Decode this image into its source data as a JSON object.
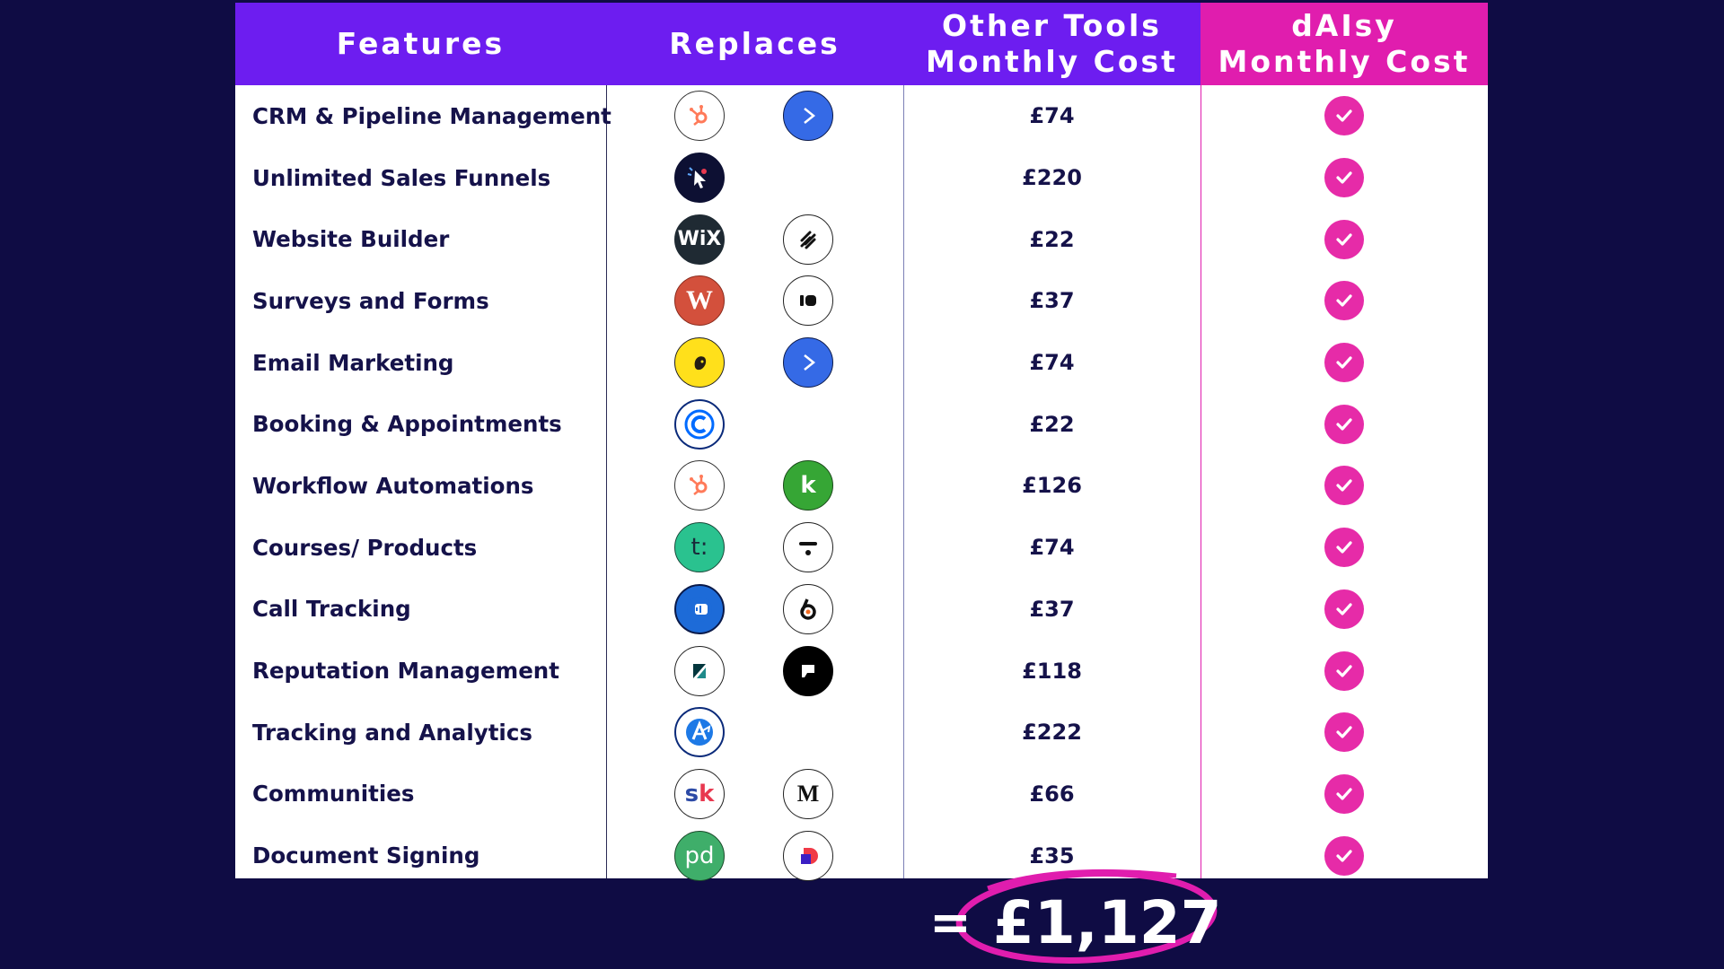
{
  "headers": {
    "features": "Features",
    "replaces": "Replaces",
    "other_tools": "Other Tools\nMonthly Cost",
    "daisy": "dAIsy\nMonthly Cost"
  },
  "colors": {
    "background": "#0f0c44",
    "header_purple": "#6d1df0",
    "header_pink": "#e01dae",
    "check_pink": "#e62ba8",
    "text_dark": "#15124a"
  },
  "rows": [
    {
      "feature": "CRM & Pipeline Management",
      "cost": "£74",
      "logos": [
        "hubspot-icon",
        "activecampaign-icon"
      ]
    },
    {
      "feature": "Unlimited Sales Funnels",
      "cost": "£220",
      "logos": [
        "clickfunnels-icon"
      ]
    },
    {
      "feature": "Website Builder",
      "cost": "£22",
      "logos": [
        "wix-icon",
        "squarespace-icon"
      ]
    },
    {
      "feature": "Surveys and Forms",
      "cost": "£37",
      "logos": [
        "wufoo-icon",
        "typeform-icon"
      ]
    },
    {
      "feature": "Email Marketing",
      "cost": "£74",
      "logos": [
        "mailchimp-icon",
        "activecampaign-icon"
      ]
    },
    {
      "feature": "Booking & Appointments",
      "cost": "£22",
      "logos": [
        "calendly-icon"
      ]
    },
    {
      "feature": "Workflow Automations",
      "cost": "£126",
      "logos": [
        "hubspot-icon",
        "keap-icon"
      ]
    },
    {
      "feature": "Courses/ Products",
      "cost": "£74",
      "logos": [
        "teachable-icon",
        "thinkific-icon"
      ]
    },
    {
      "feature": "Call Tracking",
      "cost": "£37",
      "logos": [
        "callrail-icon",
        "ringba-icon"
      ]
    },
    {
      "feature": "Reputation Management",
      "cost": "£118",
      "logos": [
        "zendesk-icon",
        "podium-icon"
      ]
    },
    {
      "feature": "Tracking and Analytics",
      "cost": "£222",
      "logos": [
        "analytics-icon"
      ]
    },
    {
      "feature": "Communities",
      "cost": "£66",
      "logos": [
        "skool-icon",
        "mighty-networks-icon"
      ]
    },
    {
      "feature": "Document Signing",
      "cost": "£35",
      "logos": [
        "pandadoc-icon",
        "dropbox-sign-icon"
      ]
    }
  ],
  "total": {
    "equals": "=",
    "amount": "£1,127"
  }
}
